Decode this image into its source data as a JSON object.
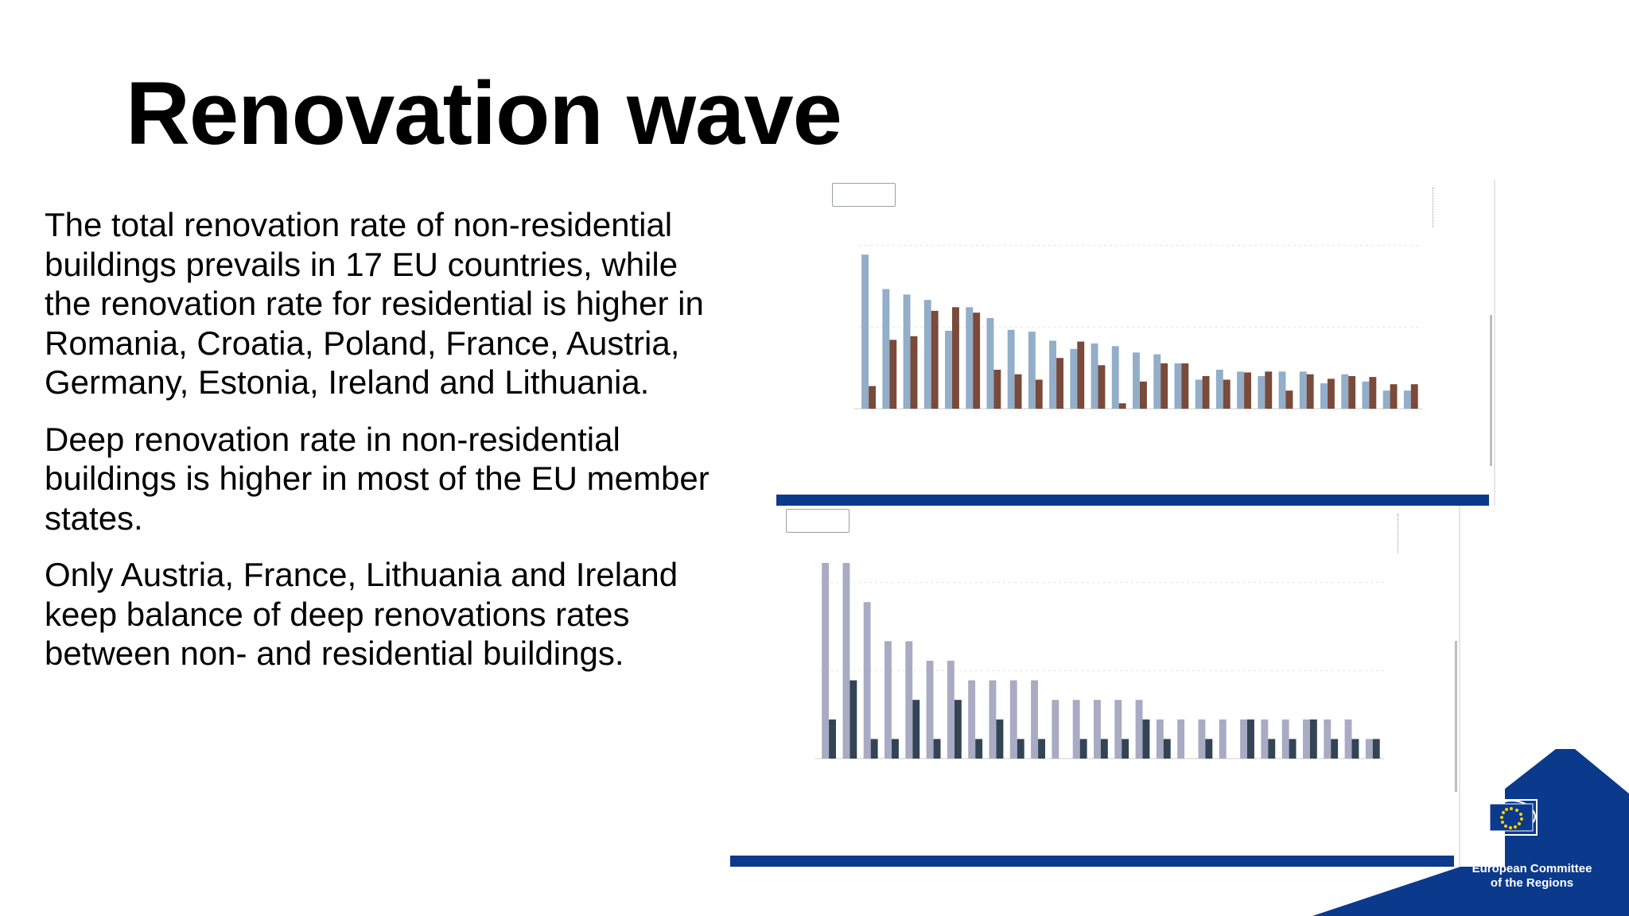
{
  "slide": {
    "title": "Renovation wave",
    "paragraphs": [
      "The total renovation rate of non-residential buildings prevails in 17 EU countries, while the renovation rate for residential is higher in Romania, Croatia, Poland, France, Austria, Germany, Estonia, Ireland and Lithuania.",
      "Deep renovation rate in non-residential buildings is higher in most of the EU member states.",
      "Only Austria, France, Lithuania and Ireland keep balance of deep renovations rates between non- and residential buildings."
    ]
  },
  "branding": {
    "logo_line1": "European Committee",
    "logo_line2": "of the Regions",
    "brand_blue": "#0b3a8c"
  },
  "chart_data": [
    {
      "type": "bar",
      "series": [
        {
          "color": "#92aec8",
          "values": [
            1.7,
            1.32,
            1.26,
            1.2,
            0.86,
            1.12,
            1.0,
            0.87,
            0.85,
            0.75,
            0.66,
            0.72,
            0.69,
            0.62,
            0.6,
            0.5,
            0.32,
            0.43,
            0.41,
            0.36,
            0.41,
            0.41,
            0.28,
            0.38,
            0.3,
            0.2,
            0.2
          ]
        },
        {
          "color": "#7a4a3a",
          "values": [
            0.25,
            0.76,
            0.8,
            1.08,
            1.12,
            1.06,
            0.43,
            0.38,
            0.32,
            0.56,
            0.74,
            0.48,
            0.06,
            0.3,
            0.5,
            0.5,
            0.36,
            0.32,
            0.4,
            0.41,
            0.2,
            0.38,
            0.33,
            0.36,
            0.35,
            0.27,
            0.27
          ]
        }
      ],
      "ylim": [
        0,
        2
      ]
    },
    {
      "type": "bar",
      "series": [
        {
          "color": "#a9abc4",
          "values": [
            1.0,
            1.0,
            0.8,
            0.6,
            0.6,
            0.5,
            0.5,
            0.4,
            0.4,
            0.4,
            0.4,
            0.3,
            0.3,
            0.3,
            0.3,
            0.3,
            0.2,
            0.2,
            0.2,
            0.2,
            0.2,
            0.2,
            0.2,
            0.2,
            0.2,
            0.2,
            0.1
          ]
        },
        {
          "color": "#334455",
          "values": [
            0.2,
            0.4,
            0.1,
            0.1,
            0.3,
            0.1,
            0.3,
            0.1,
            0.2,
            0.1,
            0.1,
            0.0,
            0.1,
            0.1,
            0.1,
            0.2,
            0.1,
            0.0,
            0.1,
            0.0,
            0.2,
            0.1,
            0.1,
            0.2,
            0.1,
            0.1,
            0.1
          ]
        }
      ],
      "ylim": [
        0,
        1.0
      ]
    }
  ]
}
